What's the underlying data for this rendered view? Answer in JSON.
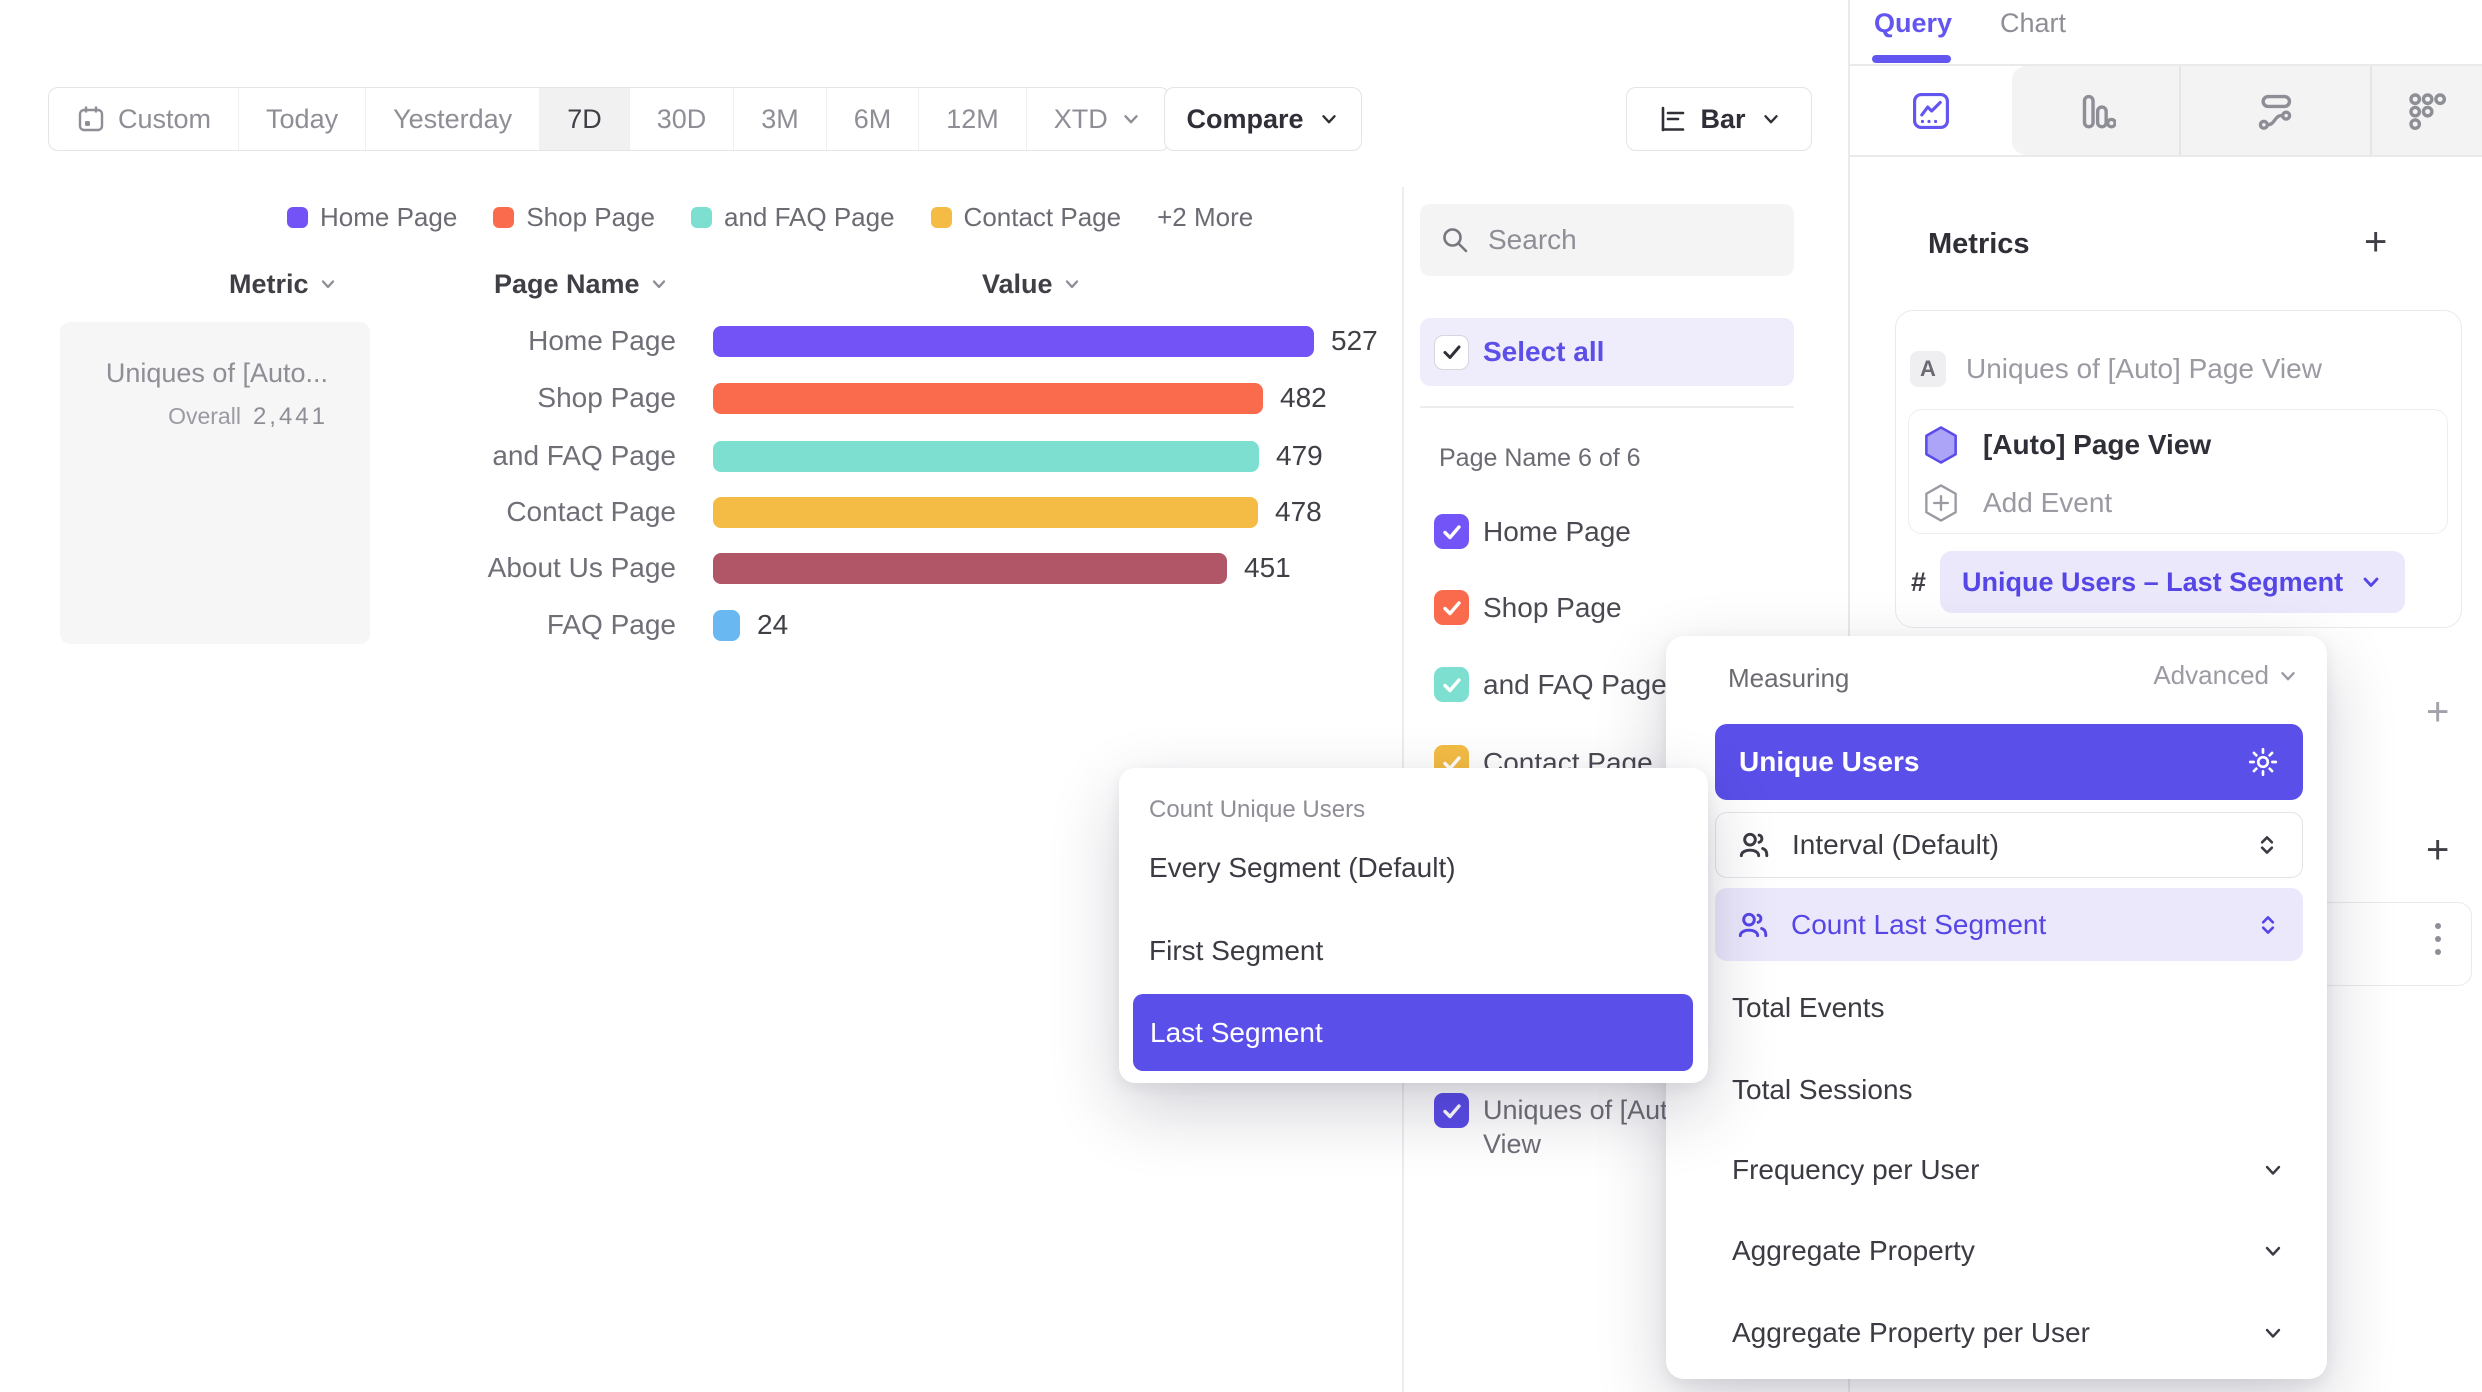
{
  "toolbar": {
    "ranges": [
      "Custom",
      "Today",
      "Yesterday",
      "7D",
      "30D",
      "3M",
      "6M",
      "12M",
      "XTD"
    ],
    "active_range": "7D",
    "compare_label": "Compare",
    "chart_type_label": "Bar"
  },
  "legend": {
    "items": [
      {
        "label": "Home Page",
        "color": "#7453F6"
      },
      {
        "label": "Shop Page",
        "color": "#FA6B4D"
      },
      {
        "label": "and FAQ Page",
        "color": "#7CDFD0"
      },
      {
        "label": "Contact Page",
        "color": "#F4BC44"
      }
    ],
    "more_label": "+2 More"
  },
  "table": {
    "headers": {
      "metric": "Metric",
      "page_name": "Page Name",
      "value": "Value"
    },
    "metric_cell": {
      "title": "Uniques of [Auto...",
      "overall_label": "Overall",
      "overall_value": "2,441"
    }
  },
  "chart_data": {
    "type": "bar",
    "orientation": "horizontal",
    "title": "Uniques of [Auto] Page View",
    "xlabel": "Value",
    "ylabel": "Page Name",
    "categories": [
      "Home Page",
      "Shop Page",
      "and FAQ Page",
      "Contact Page",
      "About Us Page",
      "FAQ Page"
    ],
    "values": [
      527,
      482,
      479,
      478,
      451,
      24
    ],
    "colors": [
      "#7453F6",
      "#FA6B4D",
      "#7CDFD0",
      "#F4BC44",
      "#B15667",
      "#69B8F1"
    ],
    "overall_total": "2,441",
    "legend_position": "top",
    "grid": false
  },
  "filter_panel": {
    "search_placeholder": "Search",
    "select_all_label": "Select all",
    "group_label": "Page Name 6 of 6",
    "items": [
      {
        "label": "Home Page",
        "color": "#7355F7",
        "checked": true
      },
      {
        "label": "Shop Page",
        "color": "#FA6B4D",
        "checked": true
      },
      {
        "label": "and FAQ Page",
        "color": "#7CDFD0",
        "checked": true
      },
      {
        "label": "Contact Page",
        "color": "#F4BC44",
        "checked": true
      }
    ],
    "overflow_item": {
      "label": "Uniques of [Auto] Page View",
      "color": "#5B4BE8",
      "checked": true
    }
  },
  "segment_menu": {
    "title": "Count Unique Users",
    "options": [
      "Every Segment (Default)",
      "First Segment",
      "Last Segment"
    ],
    "selected": "Last Segment"
  },
  "measuring_menu": {
    "title": "Measuring",
    "advanced_label": "Advanced",
    "selected": "Unique Users",
    "interval_label": "Interval (Default)",
    "count_label": "Count Last Segment",
    "options": [
      "Total Events",
      "Total Sessions"
    ],
    "expandable": [
      "Frequency per User",
      "Aggregate Property",
      "Aggregate Property per User"
    ]
  },
  "query_panel": {
    "tabs": [
      "Query",
      "Chart"
    ],
    "active_tab": "Query",
    "metrics_title": "Metrics",
    "metric": {
      "badge": "A",
      "title": "Uniques of [Auto] Page View",
      "event_name": "[Auto] Page View",
      "add_event_label": "Add Event",
      "hash": "#",
      "measurement": "Unique Users – Last Segment"
    }
  },
  "colors": {
    "accent": "#5A4FE8",
    "accent_text": "#5546E5",
    "accent_light": "#EBE8FC",
    "tab_active": "#6255F0",
    "select_all_bg": "#EFECFB"
  }
}
